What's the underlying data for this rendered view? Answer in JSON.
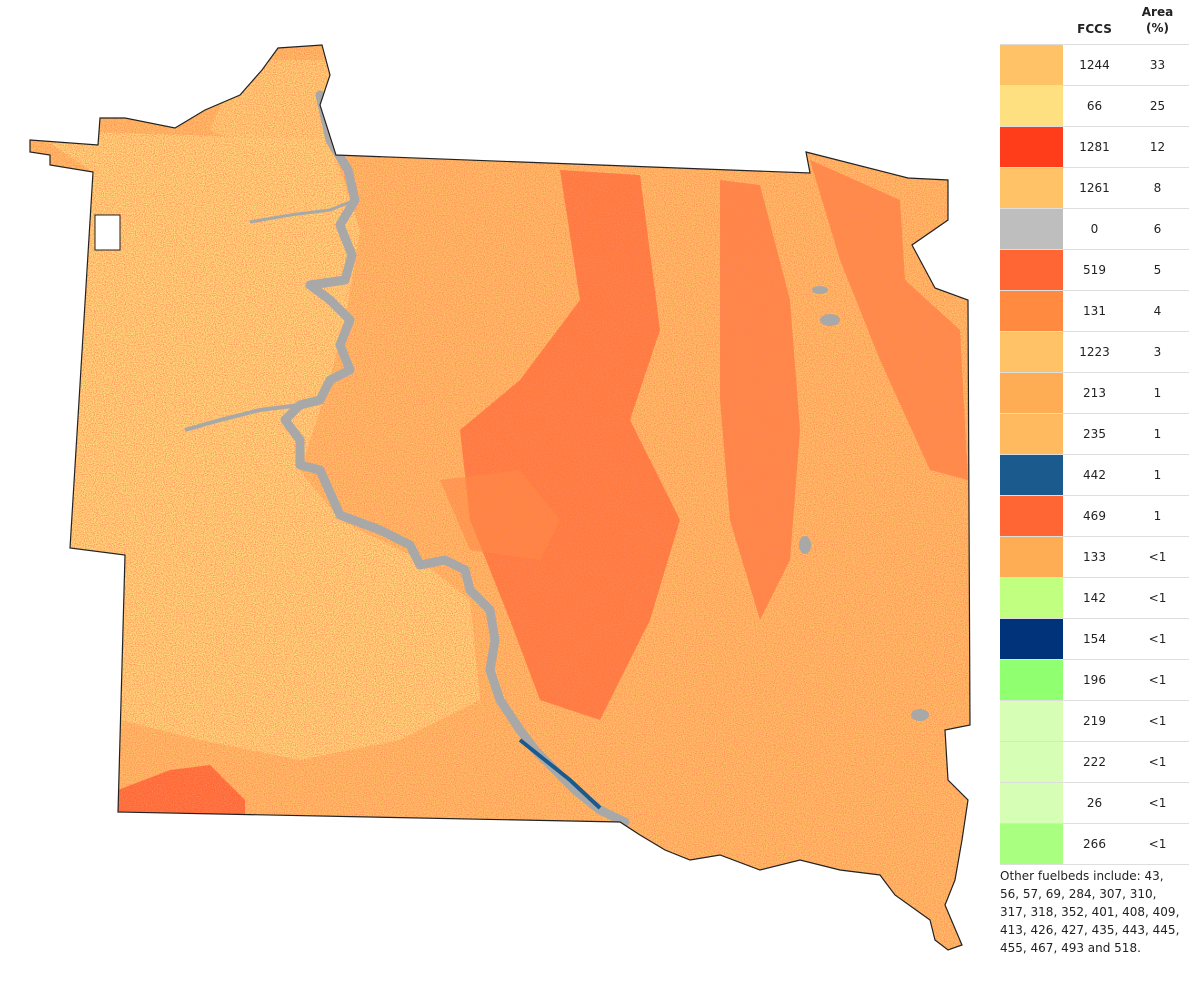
{
  "legend": {
    "col_fccs": "FCCS",
    "col_area_line1": "Area",
    "col_area_line2": "(%)",
    "rows": [
      {
        "fccs": "1244",
        "area": "33",
        "color": "#FFC266"
      },
      {
        "fccs": "66",
        "area": "25",
        "color": "#FFE080"
      },
      {
        "fccs": "1281",
        "area": "12",
        "color": "#FF3D1A"
      },
      {
        "fccs": "1261",
        "area": "8",
        "color": "#FFC266"
      },
      {
        "fccs": "0",
        "area": "6",
        "color": "#BEBEBE"
      },
      {
        "fccs": "519",
        "area": "5",
        "color": "#FF6633"
      },
      {
        "fccs": "131",
        "area": "4",
        "color": "#FF8A40"
      },
      {
        "fccs": "1223",
        "area": "3",
        "color": "#FFC266"
      },
      {
        "fccs": "213",
        "area": "1",
        "color": "#FFAD55"
      },
      {
        "fccs": "235",
        "area": "1",
        "color": "#FFBA60"
      },
      {
        "fccs": "442",
        "area": "1",
        "color": "#1A5A8C"
      },
      {
        "fccs": "469",
        "area": "1",
        "color": "#FF6633"
      },
      {
        "fccs": "133",
        "area": "<1",
        "color": "#FFAD55"
      },
      {
        "fccs": "142",
        "area": "<1",
        "color": "#C0FF80"
      },
      {
        "fccs": "154",
        "area": "<1",
        "color": "#00337A"
      },
      {
        "fccs": "196",
        "area": "<1",
        "color": "#90FF70"
      },
      {
        "fccs": "219",
        "area": "<1",
        "color": "#D6FFB5"
      },
      {
        "fccs": "222",
        "area": "<1",
        "color": "#D6FFB5"
      },
      {
        "fccs": "26",
        "area": "<1",
        "color": "#D6FFB5"
      },
      {
        "fccs": "266",
        "area": "<1",
        "color": "#A8FF80"
      }
    ],
    "note": "Other fuelbeds include: 43, 56, 57, 69, 284, 307, 310, 317, 318, 352, 401, 408, 409, 413, 426, 427, 435, 443, 445, 455, 467, 493 and 518."
  },
  "map": {
    "base_color": "#FFC266",
    "light_color": "#FFE080",
    "red_color": "#FF3D1A",
    "orange_color": "#FF6633",
    "river_color": "#A8A8A8",
    "water_color": "#1A5A8C",
    "outline_color": "#222222"
  }
}
